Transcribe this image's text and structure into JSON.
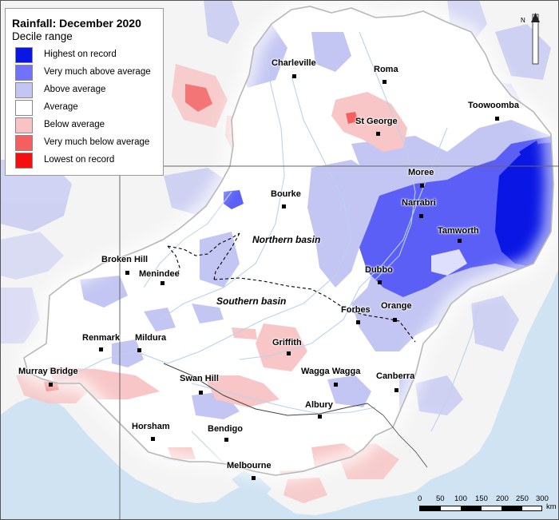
{
  "legend": {
    "title": "Rainfall: December 2020",
    "subtitle": "Decile range",
    "items": [
      {
        "label": "Highest on record",
        "color": "#0a17e4"
      },
      {
        "label": "Very much above average",
        "color": "#6f73ff"
      },
      {
        "label": "Above average",
        "color": "#c3c6f2"
      },
      {
        "label": "Average",
        "color": "#ffffff"
      },
      {
        "label": "Below average",
        "color": "#f9c3c3"
      },
      {
        "label": "Very much below average",
        "color": "#f46060"
      },
      {
        "label": "Lowest on record",
        "color": "#f50f0f"
      }
    ]
  },
  "towns": [
    {
      "name": "Charleville"
    },
    {
      "name": "Roma"
    },
    {
      "name": "Toowoomba"
    },
    {
      "name": "St George"
    },
    {
      "name": "Moree"
    },
    {
      "name": "Bourke"
    },
    {
      "name": "Narrabri"
    },
    {
      "name": "Tamworth"
    },
    {
      "name": "Broken Hill"
    },
    {
      "name": "Menindee"
    },
    {
      "name": "Dubbo"
    },
    {
      "name": "Forbes"
    },
    {
      "name": "Orange"
    },
    {
      "name": "Renmark"
    },
    {
      "name": "Mildura"
    },
    {
      "name": "Griffith"
    },
    {
      "name": "Murray Bridge"
    },
    {
      "name": "Swan Hill"
    },
    {
      "name": "Wagga Wagga"
    },
    {
      "name": "Canberra"
    },
    {
      "name": "Albury"
    },
    {
      "name": "Horsham"
    },
    {
      "name": "Bendigo"
    },
    {
      "name": "Melbourne"
    }
  ],
  "basins": {
    "northern": "Northern basin",
    "southern": "Southern basin"
  },
  "scale": {
    "ticks": [
      "0",
      "50",
      "100",
      "150",
      "200",
      "250",
      "300"
    ],
    "unit": "km"
  },
  "north_label": "N"
}
